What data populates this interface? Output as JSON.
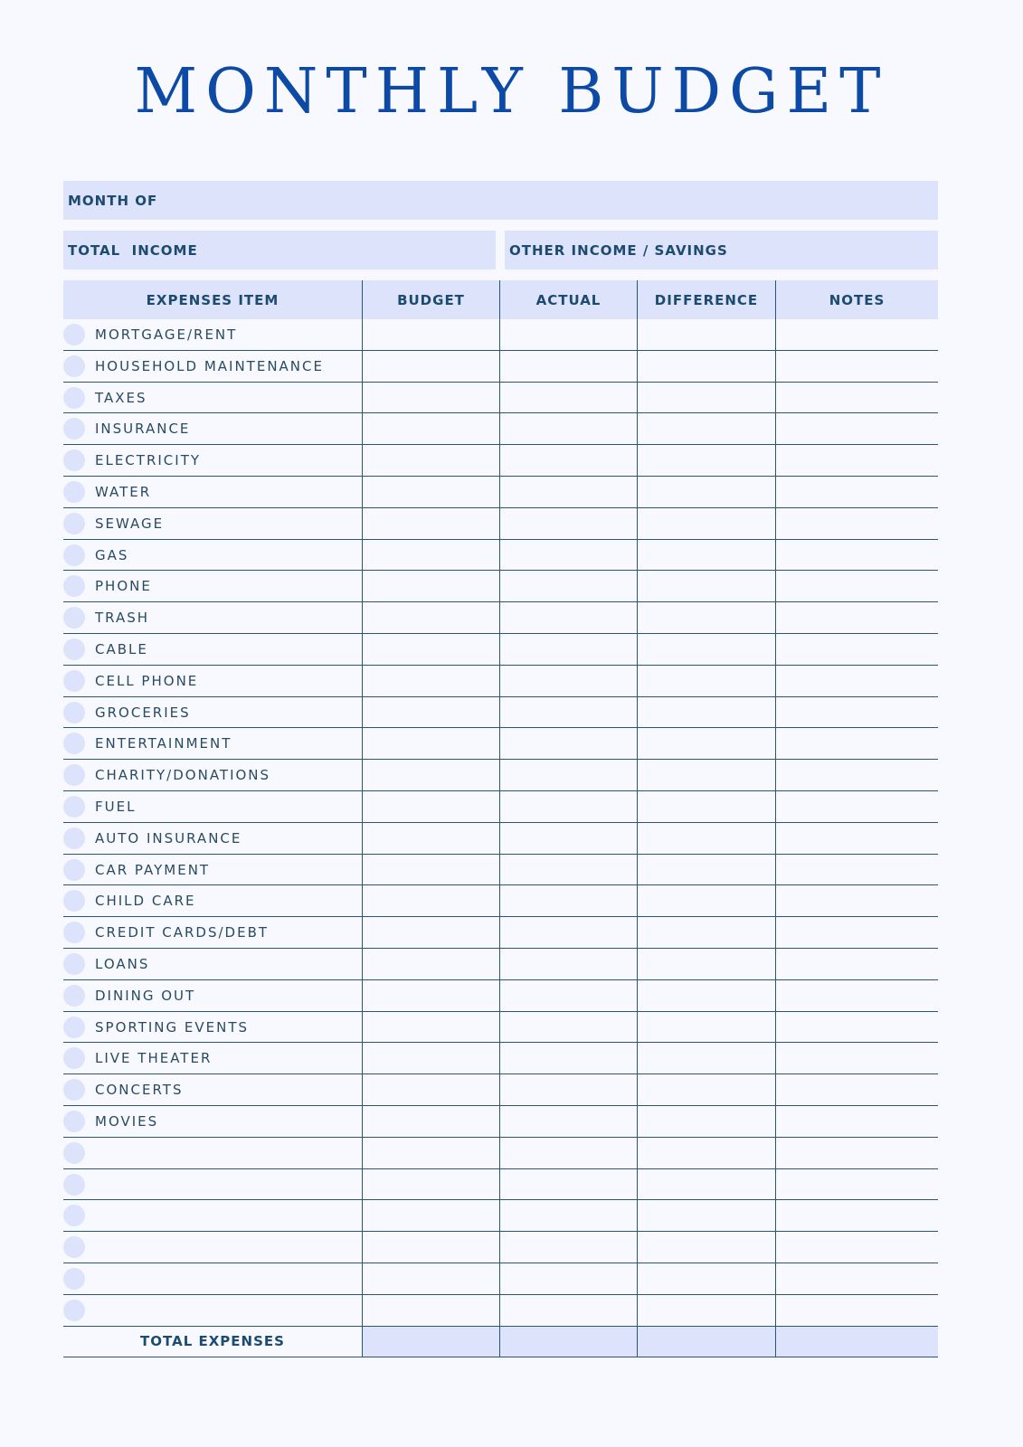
{
  "title": "MONTHLY BUDGET",
  "fields": {
    "month_of": "MONTH OF",
    "total_income": "TOTAL  INCOME",
    "other_income": "OTHER INCOME / SAVINGS"
  },
  "table": {
    "headers": [
      "EXPENSES ITEM",
      "BUDGET",
      "ACTUAL",
      "DIFFERENCE",
      "NOTES"
    ],
    "items": [
      "MORTGAGE/RENT",
      "HOUSEHOLD MAINTENANCE",
      "TAXES",
      "INSURANCE",
      "ELECTRICITY",
      "WATER",
      "SEWAGE",
      "GAS",
      "PHONE",
      "TRASH",
      "CABLE",
      "CELL PHONE",
      "GROCERIES",
      "ENTERTAINMENT",
      "CHARITY/DONATIONS",
      "FUEL",
      "AUTO INSURANCE",
      "CAR PAYMENT",
      "CHILD CARE",
      "CREDIT CARDS/DEBT",
      "LOANS",
      "DINING OUT",
      "SPORTING EVENTS",
      "LIVE THEATER",
      "CONCERTS",
      "MOVIES",
      "",
      "",
      "",
      "",
      "",
      ""
    ],
    "total_label": "TOTAL EXPENSES"
  },
  "colors": {
    "title": "#0d4aa6",
    "fill": "#dde3fb",
    "line": "#2a5478",
    "background": "#f7f9fe"
  }
}
